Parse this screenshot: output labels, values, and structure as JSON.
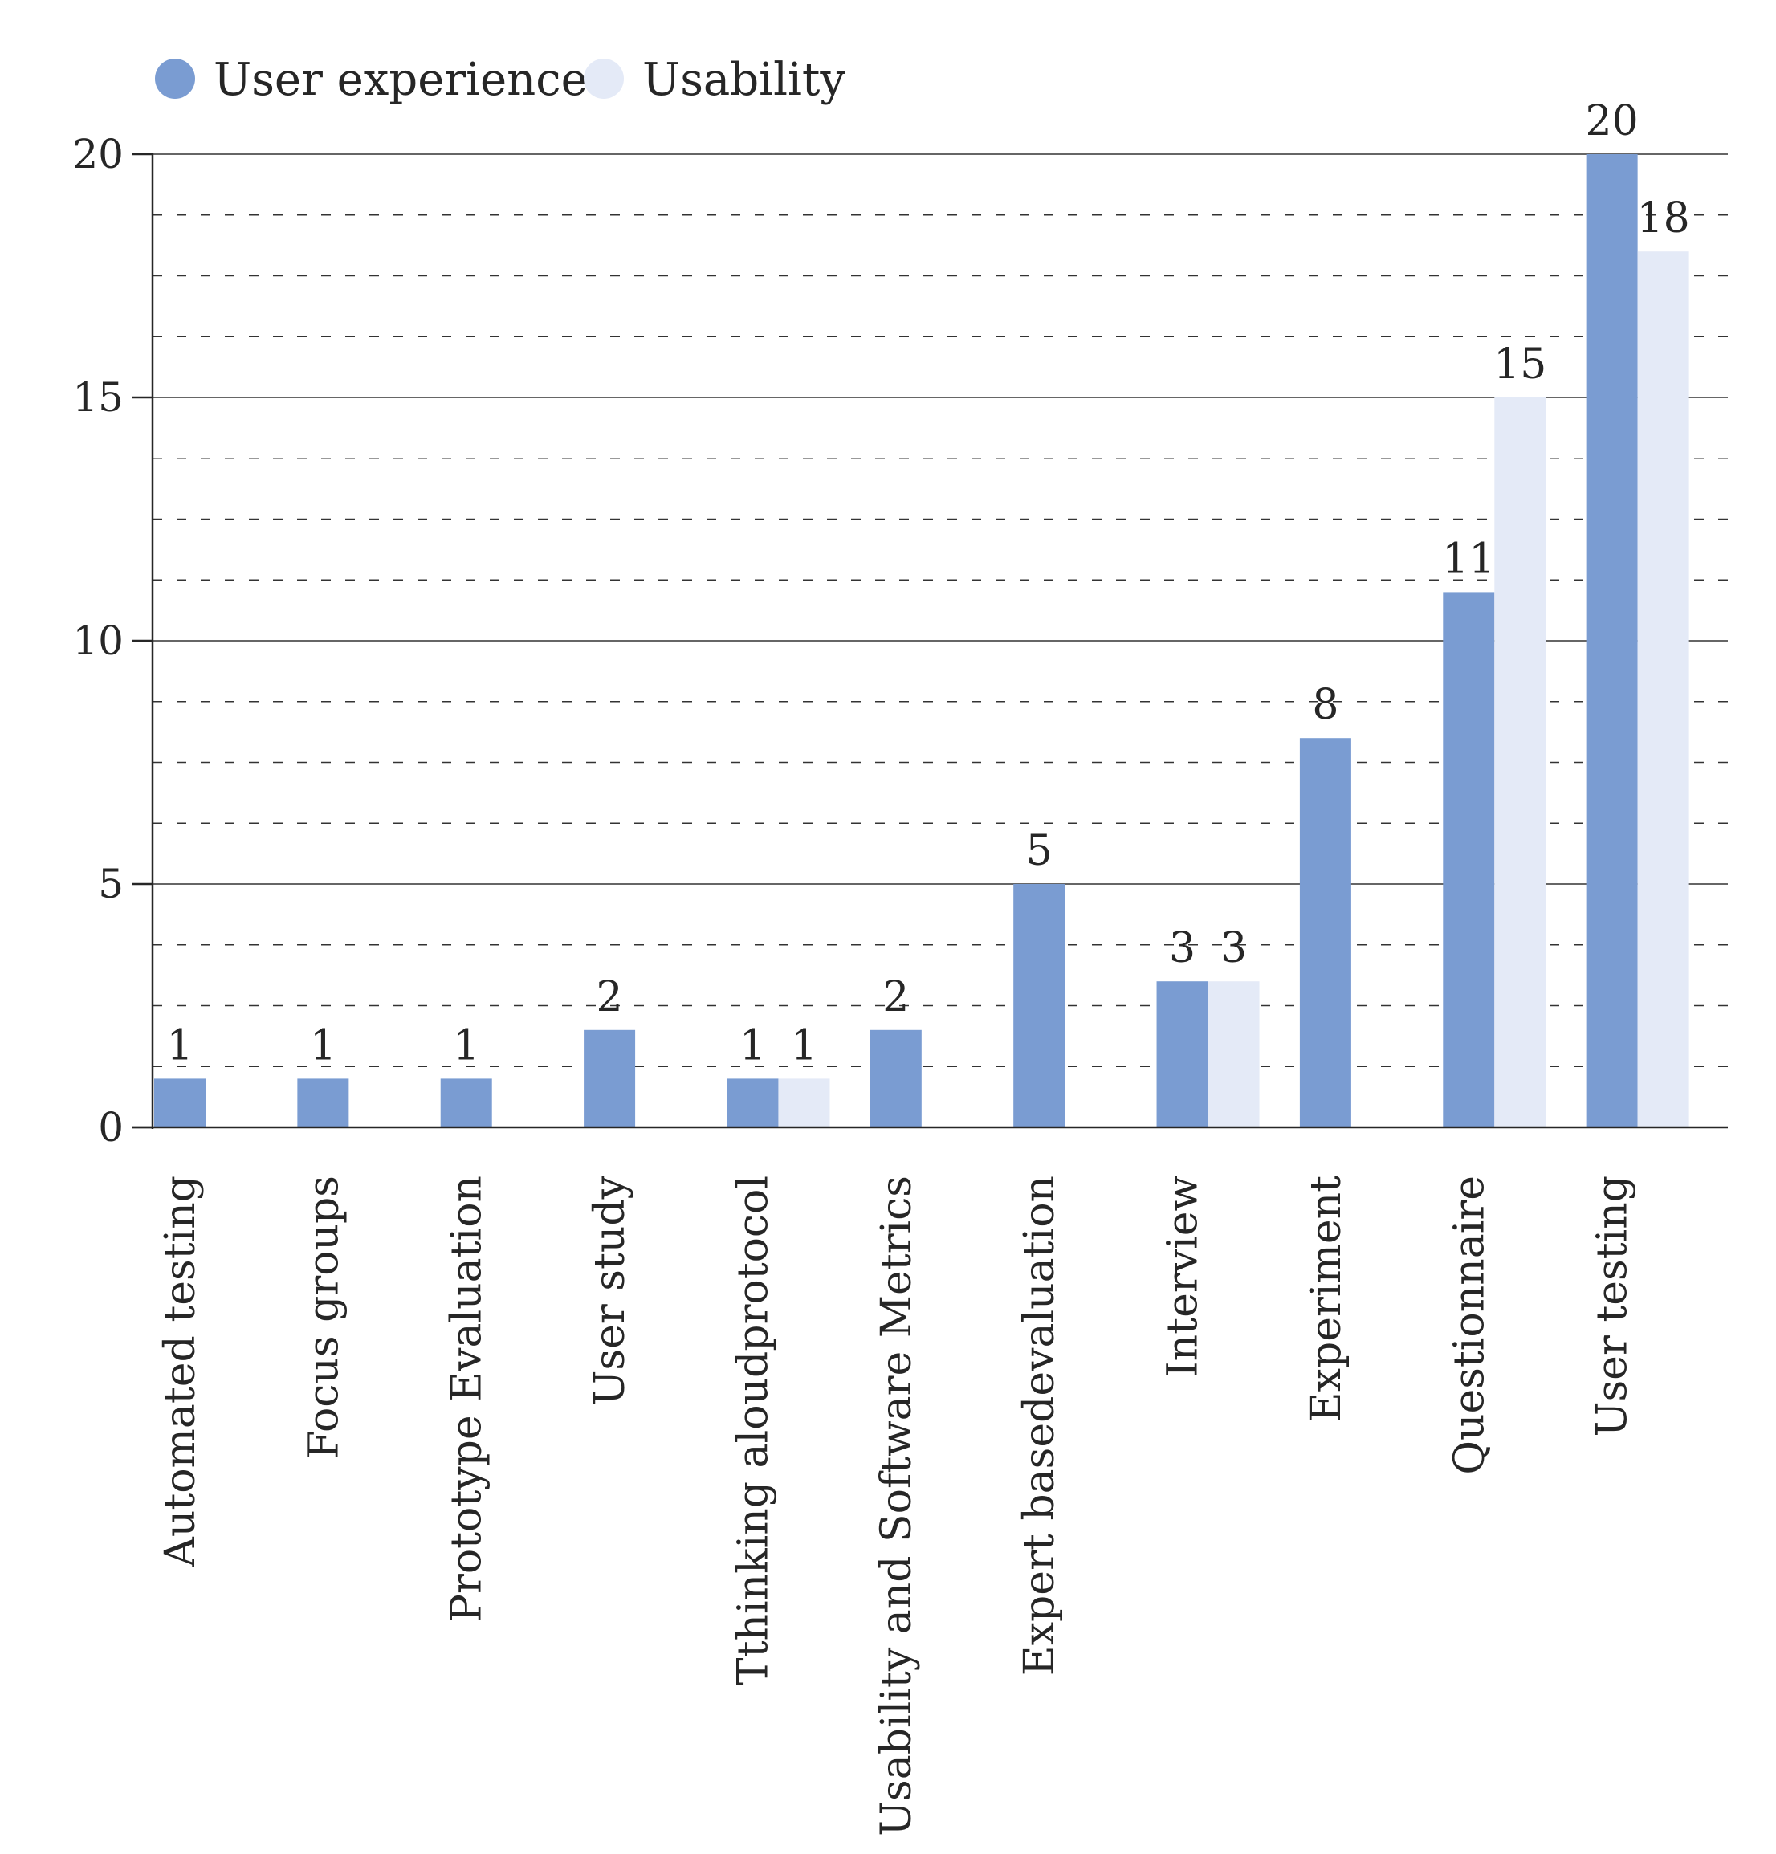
{
  "colors": {
    "series_1": "#7a9cd2",
    "series_2": "#e4eaf7",
    "axis": "#262626",
    "grid": "#333333",
    "text": "#262626"
  },
  "chart_data": {
    "type": "bar",
    "title": "",
    "xlabel": "",
    "ylabel": "",
    "ylim": [
      0,
      20
    ],
    "yticks": [
      "0",
      "5",
      "10",
      "15",
      "20"
    ],
    "categories": [
      "Automated testing",
      "Focus groups",
      "Prototype Evaluation",
      "User study",
      "Tthinking aloudprotocol",
      "Usability and Software Metrics",
      "Expert basedevaluation",
      "Interview",
      "Experiment",
      "Questionnaire",
      "User testing"
    ],
    "series": [
      {
        "name": "User experience",
        "values": [
          1,
          1,
          1,
          2,
          1,
          2,
          5,
          3,
          8,
          11,
          20
        ]
      },
      {
        "name": "Usability",
        "values": [
          null,
          null,
          null,
          null,
          1,
          null,
          null,
          3,
          null,
          15,
          18
        ]
      }
    ],
    "grid": true,
    "legend": "top-left"
  }
}
